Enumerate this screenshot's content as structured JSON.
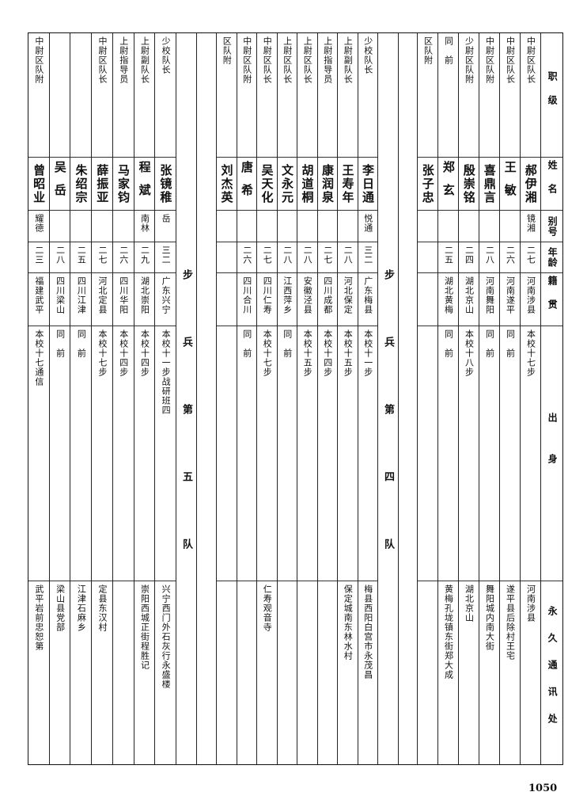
{
  "header": {
    "rank": "职级",
    "name": "姓名",
    "alias": "别号",
    "age": "年龄",
    "origin": "籍贯",
    "background": "出身",
    "address": "永久通讯处"
  },
  "sections": [
    {
      "title": "步兵第四队",
      "part": "right",
      "members": [
        {
          "rank": "中尉区队长",
          "name": "郝伊湘",
          "alias": "镜湘",
          "age": "二七",
          "origin": "河南涉县",
          "background": "本校十七步",
          "address": "河南涉县"
        },
        {
          "rank": "中尉区队长",
          "name": "王敏",
          "alias": "",
          "age": "二六",
          "origin": "河南遂平",
          "background": "同　前",
          "address": "遂平县后除村王宅"
        },
        {
          "rank": "中尉区队附",
          "name": "喜鼎言",
          "alias": "",
          "age": "二八",
          "origin": "河南舞阳",
          "background": "同　前",
          "address": "舞阳城内南大街"
        },
        {
          "rank": "少尉区队附",
          "name": "殷崇铭",
          "alias": "",
          "age": "二四",
          "origin": "湖北京山",
          "background": "本校十八步",
          "address": "湖北京山"
        },
        {
          "rank": "同　前",
          "name": "郑玄",
          "alias": "",
          "age": "二五",
          "origin": "湖北黄梅",
          "background": "同　前",
          "address": "黄梅孔垅镇东街郑大成"
        },
        {
          "rank": "区队附",
          "name": "张子忠",
          "alias": "",
          "age": "",
          "origin": "",
          "background": "",
          "address": ""
        }
      ]
    },
    {
      "title": "步兵第四队",
      "part": "middle",
      "members": [
        {
          "rank": "少校队长",
          "name": "李日通",
          "alias": "悦通",
          "age": "三二",
          "origin": "广东梅县",
          "background": "本校十一步",
          "address": "梅县西阳白宫市永茂昌"
        },
        {
          "rank": "上尉副队长",
          "name": "王寿年",
          "alias": "",
          "age": "二八",
          "origin": "河北保定",
          "background": "本校十五步",
          "address": "保定城南东林水村"
        },
        {
          "rank": "上尉指导员",
          "name": "康润泉",
          "alias": "",
          "age": "二七",
          "origin": "四川成都",
          "background": "本校十四步",
          "address": ""
        },
        {
          "rank": "上尉区队长",
          "name": "胡道桐",
          "alias": "",
          "age": "二八",
          "origin": "安徽泾县",
          "background": "本校十五步",
          "address": ""
        },
        {
          "rank": "上尉区队长",
          "name": "文永元",
          "alias": "",
          "age": "二八",
          "origin": "江西萍乡",
          "background": "同　前",
          "address": ""
        },
        {
          "rank": "中尉区队长",
          "name": "吴天化",
          "alias": "",
          "age": "二七",
          "origin": "四川仁寿",
          "background": "本校十七步",
          "address": "仁寿观音寺"
        },
        {
          "rank": "中尉区队附",
          "name": "唐希",
          "alias": "",
          "age": "二六",
          "origin": "四川合川",
          "background": "同　前",
          "address": ""
        },
        {
          "rank": "区队附",
          "name": "刘杰英",
          "alias": "",
          "age": "",
          "origin": "",
          "background": "",
          "address": ""
        }
      ]
    },
    {
      "title": "步兵第五队",
      "part": "left",
      "members": [
        {
          "rank": "少校队长",
          "name": "张镜稚",
          "alias": "岳",
          "age": "三二",
          "origin": "广东兴宁",
          "background": "本校十一步战研班四",
          "address": "兴宁西门外石灰行永盛楼"
        },
        {
          "rank": "上尉副队长",
          "name": "程斌",
          "alias": "南林",
          "age": "二九",
          "origin": "湖北崇阳",
          "background": "本校十四步",
          "address": "崇阳西城正街程胜记"
        },
        {
          "rank": "上尉指导员",
          "name": "马家钧",
          "alias": "",
          "age": "二六",
          "origin": "四川华阳",
          "background": "本校十四步",
          "address": ""
        },
        {
          "rank": "中尉区队长",
          "name": "薛振亚",
          "alias": "",
          "age": "二七",
          "origin": "河北定县",
          "background": "本校十七步",
          "address": "定县东汉村"
        },
        {
          "rank": "",
          "name": "朱绍宗",
          "alias": "",
          "age": "二五",
          "origin": "四川江津",
          "background": "同　前",
          "address": "江津石麻乡"
        },
        {
          "rank": "",
          "name": "吴岳",
          "alias": "",
          "age": "二八",
          "origin": "四川梁山",
          "background": "同　前",
          "address": "梁山县党部"
        },
        {
          "rank": "中尉区队附",
          "name": "曾昭业",
          "alias": "耀德",
          "age": "二三",
          "origin": "福建武平",
          "background": "本校十七通信",
          "address": "武平岩前忠恕第"
        }
      ]
    }
  ],
  "page_number": "1050"
}
